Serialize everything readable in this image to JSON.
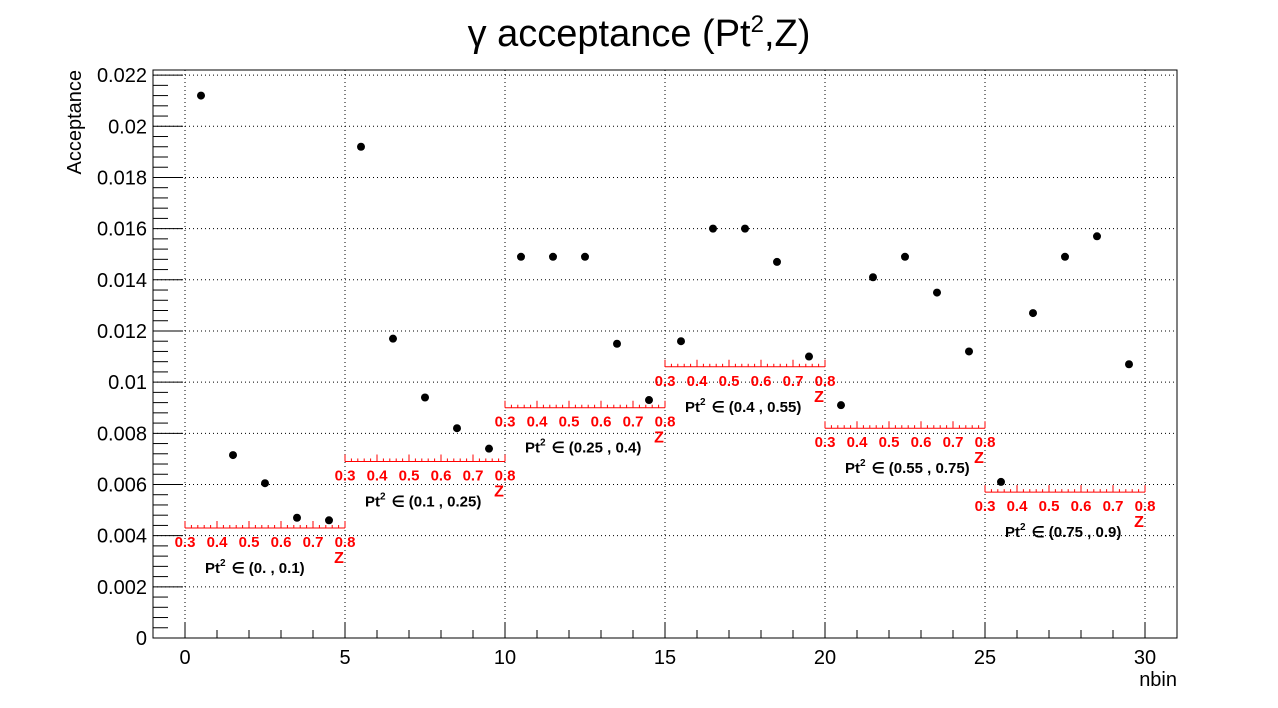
{
  "chart_data": {
    "type": "scatter",
    "title_prefix": "γ acceptance (Pt",
    "title_sup": "2",
    "title_suffix": ",Z)",
    "xlabel": "nbin",
    "ylabel": "Acceptance",
    "xlim": [
      -1,
      31
    ],
    "ylim": [
      0,
      0.0222
    ],
    "xticks": [
      "0",
      "5",
      "10",
      "15",
      "20",
      "25",
      "30"
    ],
    "yticks": [
      "0",
      "0.002",
      "0.004",
      "0.006",
      "0.008",
      "0.01",
      "0.012",
      "0.014",
      "0.016",
      "0.018",
      "0.02",
      "0.022"
    ],
    "grid": true,
    "marker_color": "#000000",
    "annotation_color": "#ff0000",
    "points": {
      "x": [
        0.5,
        1.5,
        2.5,
        3.5,
        4.5,
        5.5,
        6.5,
        7.5,
        8.5,
        9.5,
        10.5,
        11.5,
        12.5,
        13.5,
        14.5,
        15.5,
        16.5,
        17.5,
        18.5,
        19.5,
        20.5,
        21.5,
        22.5,
        23.5,
        24.5,
        25.5,
        26.5,
        27.5,
        28.5,
        29.5
      ],
      "y": [
        0.0212,
        0.00715,
        0.00605,
        0.0047,
        0.0046,
        0.0192,
        0.0117,
        0.0094,
        0.0082,
        0.0074,
        0.0149,
        0.0149,
        0.0149,
        0.0115,
        0.0093,
        0.0116,
        0.016,
        0.016,
        0.0147,
        0.011,
        0.0091,
        0.0141,
        0.0149,
        0.0135,
        0.0112,
        0.0061,
        0.0127,
        0.0149,
        0.0157,
        0.0107
      ]
    },
    "z_axis_labels": [
      "0.3",
      "0.4",
      "0.5",
      "0.6",
      "0.7",
      "0.8"
    ],
    "z_axis_title": "Z",
    "pt2_bins": [
      {
        "label_prefix": "Pt",
        "label_sup": "2",
        "label_range": "∈ (0. , 0.1)",
        "x_start": 0,
        "x_end": 5,
        "level": 0.0043
      },
      {
        "label_prefix": "Pt",
        "label_sup": "2",
        "label_range": "∈ (0.1 , 0.25)",
        "x_start": 5,
        "x_end": 10,
        "level": 0.0069
      },
      {
        "label_prefix": "Pt",
        "label_sup": "2",
        "label_range": "∈ (0.25 , 0.4)",
        "x_start": 10,
        "x_end": 15,
        "level": 0.009
      },
      {
        "label_prefix": "Pt",
        "label_sup": "2",
        "label_range": "∈ (0.4 , 0.55)",
        "x_start": 15,
        "x_end": 20,
        "level": 0.0106
      },
      {
        "label_prefix": "Pt",
        "label_sup": "2",
        "label_range": "∈ (0.55 , 0.75)",
        "x_start": 20,
        "x_end": 25,
        "level": 0.0082
      },
      {
        "label_prefix": "Pt",
        "label_sup": "2",
        "label_range": "∈ (0.75 , 0.9)",
        "x_start": 25,
        "x_end": 30,
        "level": 0.0057
      }
    ]
  }
}
